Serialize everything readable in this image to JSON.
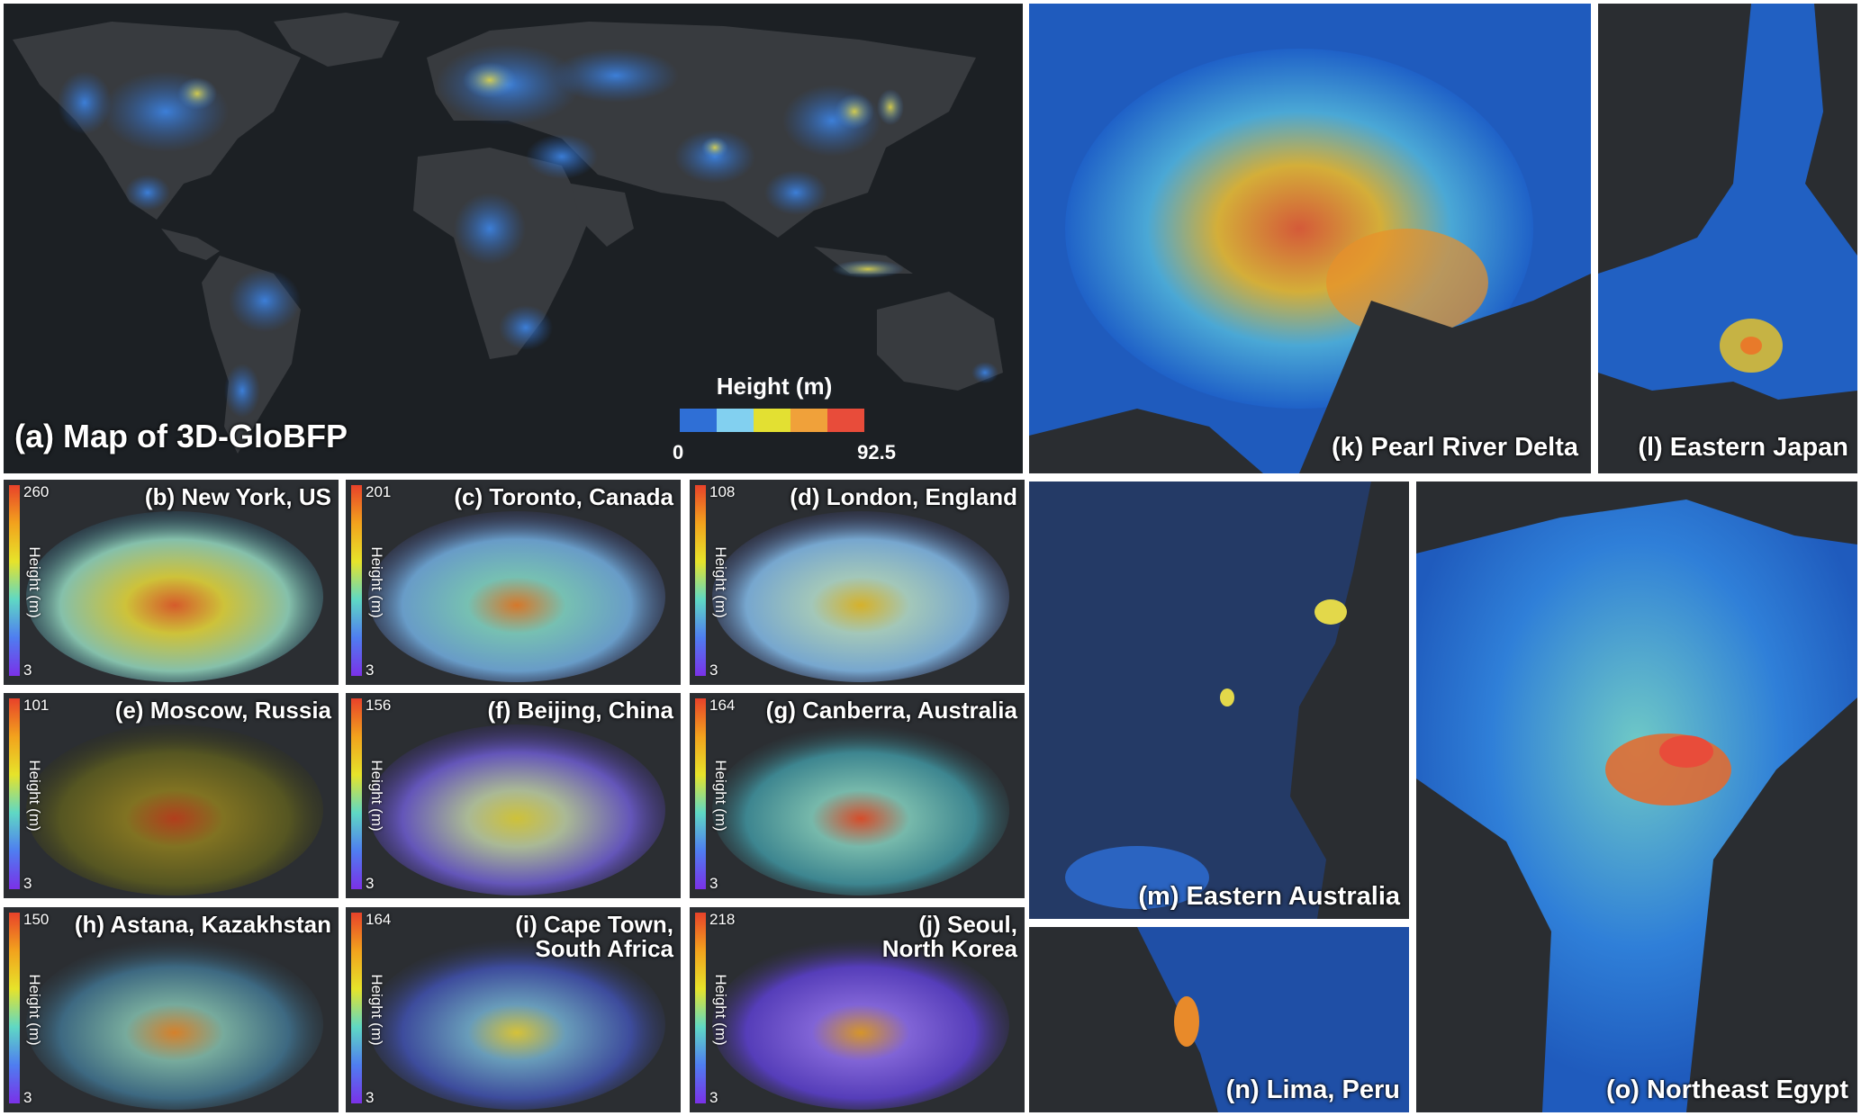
{
  "main_map": {
    "title": "(a) Map of 3D-GloBFP",
    "legend_title": "Height (m)",
    "legend_min": "0",
    "legend_max": "92.5",
    "legend_colors": [
      "#2f6fd6",
      "#82d0f0",
      "#e3e032",
      "#f0a13a",
      "#e84c3a"
    ]
  },
  "cities": [
    {
      "label": "(b) New York, US",
      "max": "260",
      "min": "3",
      "unit": "Height (m)"
    },
    {
      "label": "(c) Toronto, Canada",
      "max": "201",
      "min": "3",
      "unit": "Height (m)"
    },
    {
      "label": "(d) London, England",
      "max": "108",
      "min": "3",
      "unit": "Height (m)"
    },
    {
      "label": "(e) Moscow, Russia",
      "max": "101",
      "min": "3",
      "unit": "Height (m)"
    },
    {
      "label": "(f) Beijing, China",
      "max": "156",
      "min": "3",
      "unit": "Height (m)"
    },
    {
      "label": "(g) Canberra, Australia",
      "max": "164",
      "min": "3",
      "unit": "Height (m)"
    },
    {
      "label": "(h) Astana, Kazakhstan",
      "max": "150",
      "min": "3",
      "unit": "Height (m)"
    },
    {
      "label": "(i) Cape Town,\nSouth Africa",
      "max": "164",
      "min": "3",
      "unit": "Height (m)"
    },
    {
      "label": "(j) Seoul,\nNorth Korea",
      "max": "218",
      "min": "3",
      "unit": "Height (m)"
    }
  ],
  "regions": {
    "k": "(k) Pearl River Delta",
    "l": "(l) Eastern Japan",
    "m": "(m) Eastern Australia",
    "n": "(n) Lima, Peru",
    "o": "(o) Northeast Egypt"
  }
}
